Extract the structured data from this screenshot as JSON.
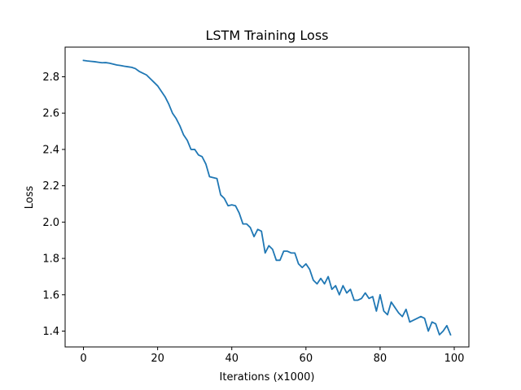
{
  "chart_data": {
    "type": "line",
    "title": "LSTM Training Loss",
    "xlabel": "Iterations (x1000)",
    "ylabel": "Loss",
    "xlim": [
      -4.95,
      103.95
    ],
    "ylim": [
      1.3128,
      2.9632
    ],
    "xticks": [
      0,
      20,
      40,
      60,
      80,
      100
    ],
    "yticks": [
      1.4,
      1.6,
      1.8,
      2.0,
      2.2,
      2.4,
      2.6,
      2.8
    ],
    "ytick_labels": [
      "1.4",
      "1.6",
      "1.8",
      "2.0",
      "2.2",
      "2.4",
      "2.6",
      "2.8"
    ],
    "grid": false,
    "series": [
      {
        "name": "Loss",
        "color": "#1f77b4",
        "x": [
          0,
          1,
          2,
          3,
          4,
          5,
          6,
          7,
          8,
          9,
          10,
          11,
          12,
          13,
          14,
          15,
          16,
          17,
          18,
          19,
          20,
          21,
          22,
          23,
          24,
          25,
          26,
          27,
          28,
          29,
          30,
          31,
          32,
          33,
          34,
          35,
          36,
          37,
          38,
          39,
          40,
          41,
          42,
          43,
          44,
          45,
          46,
          47,
          48,
          49,
          50,
          51,
          52,
          53,
          54,
          55,
          56,
          57,
          58,
          59,
          60,
          61,
          62,
          63,
          64,
          65,
          66,
          67,
          68,
          69,
          70,
          71,
          72,
          73,
          74,
          75,
          76,
          77,
          78,
          79,
          80,
          81,
          82,
          83,
          84,
          85,
          86,
          87,
          88,
          89,
          90,
          91,
          92,
          93,
          94,
          95,
          96,
          97,
          98,
          99
        ],
        "y": [
          2.89,
          2.887,
          2.885,
          2.883,
          2.88,
          2.877,
          2.878,
          2.875,
          2.87,
          2.865,
          2.862,
          2.858,
          2.855,
          2.852,
          2.845,
          2.83,
          2.82,
          2.81,
          2.79,
          2.77,
          2.75,
          2.72,
          2.69,
          2.65,
          2.6,
          2.57,
          2.53,
          2.48,
          2.45,
          2.4,
          2.4,
          2.37,
          2.36,
          2.32,
          2.25,
          2.245,
          2.24,
          2.15,
          2.13,
          2.09,
          2.095,
          2.09,
          2.05,
          1.99,
          1.99,
          1.97,
          1.92,
          1.96,
          1.95,
          1.83,
          1.87,
          1.85,
          1.79,
          1.79,
          1.84,
          1.84,
          1.83,
          1.83,
          1.77,
          1.75,
          1.77,
          1.74,
          1.68,
          1.66,
          1.69,
          1.66,
          1.7,
          1.63,
          1.65,
          1.6,
          1.65,
          1.61,
          1.63,
          1.57,
          1.57,
          1.58,
          1.61,
          1.58,
          1.59,
          1.51,
          1.6,
          1.51,
          1.49,
          1.56,
          1.53,
          1.5,
          1.48,
          1.52,
          1.45,
          1.46,
          1.47,
          1.48,
          1.47,
          1.4,
          1.45,
          1.44,
          1.38,
          1.4,
          1.43,
          1.38
        ]
      }
    ]
  }
}
